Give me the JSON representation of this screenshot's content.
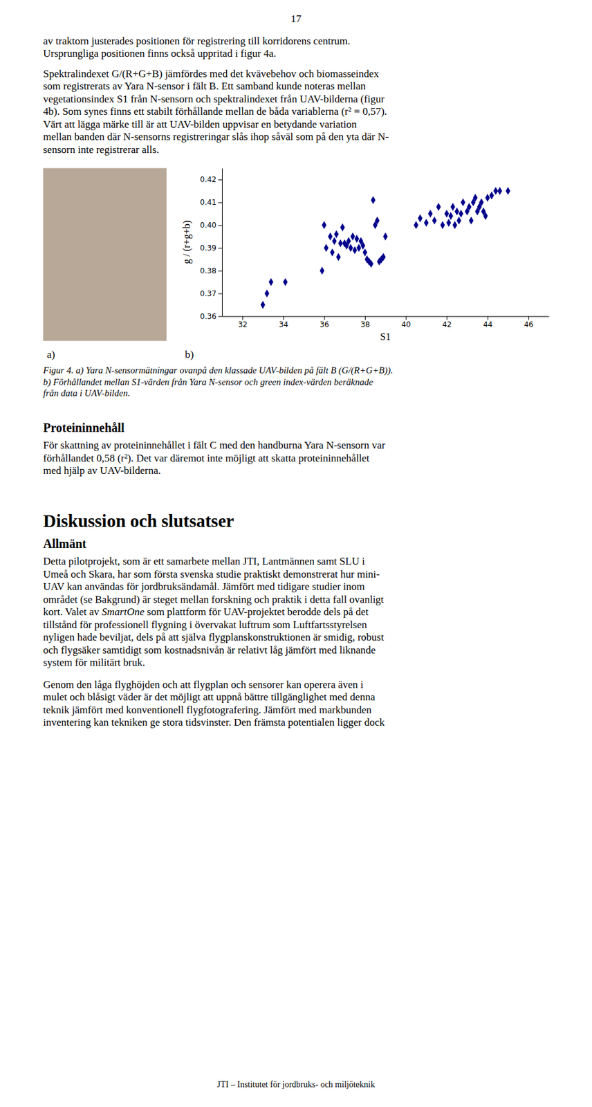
{
  "chart_data": {
    "type": "scatter",
    "xlabel": "S1",
    "ylabel": "g / (r+g+b)",
    "x": [
      33.0,
      33.2,
      33.4,
      34.1,
      35.9,
      36.0,
      36.1,
      36.3,
      36.4,
      36.5,
      36.6,
      36.7,
      36.8,
      36.9,
      37.0,
      37.1,
      37.2,
      37.3,
      37.4,
      37.5,
      37.6,
      37.7,
      37.8,
      37.9,
      38.0,
      38.1,
      38.2,
      38.3,
      38.4,
      38.5,
      38.6,
      38.7,
      38.8,
      38.9,
      39.0,
      40.5,
      40.7,
      41.0,
      41.2,
      41.4,
      41.6,
      41.8,
      42.0,
      42.1,
      42.2,
      42.3,
      42.4,
      42.5,
      42.6,
      42.7,
      42.8,
      43.0,
      43.1,
      43.2,
      43.3,
      43.4,
      43.5,
      43.6,
      43.7,
      43.8,
      43.9,
      44.0,
      44.2,
      44.4,
      44.6,
      45.0
    ],
    "values": [
      0.365,
      0.37,
      0.375,
      0.375,
      0.38,
      0.4,
      0.39,
      0.395,
      0.388,
      0.393,
      0.396,
      0.386,
      0.392,
      0.399,
      0.392,
      0.391,
      0.393,
      0.39,
      0.395,
      0.389,
      0.394,
      0.39,
      0.393,
      0.391,
      0.388,
      0.385,
      0.384,
      0.383,
      0.411,
      0.4,
      0.402,
      0.384,
      0.385,
      0.386,
      0.395,
      0.4,
      0.403,
      0.401,
      0.405,
      0.402,
      0.408,
      0.4,
      0.405,
      0.401,
      0.404,
      0.408,
      0.4,
      0.406,
      0.402,
      0.405,
      0.41,
      0.406,
      0.408,
      0.402,
      0.41,
      0.412,
      0.406,
      0.408,
      0.41,
      0.406,
      0.404,
      0.412,
      0.413,
      0.415,
      0.415,
      0.415
    ],
    "color": "#00008B",
    "marker": "diamond",
    "grid": false,
    "xlim": [
      31,
      47
    ],
    "ylim": [
      0.36,
      0.425
    ],
    "xticks": [
      32,
      34,
      36,
      38,
      40,
      42,
      44,
      46
    ],
    "yticks": [
      0.36,
      0.37,
      0.38,
      0.39,
      {
        "value": 0.4,
        "label": "0.40"
      },
      0.41,
      0.42
    ]
  },
  "page": {
    "page_number": "17",
    "paragraph1_lines": [
      "av traktorn justerades positionen för registrering till korridorens centrum.",
      "Ursprungliga positionen finns också uppritad i figur 4a."
    ],
    "paragraph2_lines": [
      "Spektralindexet G/(R+G+B) jämfördes med det kvävebehov och biomasseindex",
      "som registrerats av Yara N-sensor i fält B. Ett samband kunde noteras mellan",
      "vegetationsindex S1 från N-sensorn och spektralindexet från UAV-bilderna (figur",
      "4b). Som synes finns ett stabilt förhållande mellan de båda variablerna (r² = 0,57).",
      "Värt att lägga märke till är att UAV-bilden uppvisar en betydande variation",
      "mellan banden där N-sensorns registreringar slås ihop såväl som på den yta där N-",
      "sensorn inte registrerar alls."
    ],
    "panel_labels": [
      "a)",
      "b)"
    ],
    "figure_caption_lines": [
      "Figur 4. a) Yara N-sensormätningar ovanpå den klassade UAV-bilden på fält B (G/(R+G+B)).",
      "b) Förhållandet mellan S1-värden från Yara N-sensor och green index-värden beräknade",
      "från data i UAV-bilden."
    ],
    "section_proteininnehall": "Proteininnehåll",
    "paragraph_protein_lines": [
      "För skattning av proteininnehållet i fält C med den handburna Yara N-sensorn var",
      "förhållandet 0,58 (r²). Det var däremot inte möjligt att skatta proteininnehållet",
      "med hjälp av UAV-bilderna."
    ],
    "section_diskussion": "Diskussion och slutsatser",
    "section_allman": "Allmänt",
    "paragraph_diskussion_lines": [
      "Detta pilotprojekt, som är ett samarbete mellan JTI, Lantmännen samt SLU i",
      "Umeå och Skara, har som första svenska studie praktiskt demonstrerat hur mini-",
      "UAV kan användas för jordbruksändamål. Jämfört med tidigare studier inom",
      "området (se Bakgrund) är steget mellan forskning och praktik i detta fall ovanligt",
      [
        "kort. Valet av ",
        "SmartOne",
        " som plattform för UAV-projektet berodde dels på det"
      ],
      "tillstånd för professionell flygning i övervakat luftrum som Luftfartsstyrelsen",
      "nyligen hade beviljat, dels på att själva flygplanskonstruktionen är smidig, robust",
      "och flygsäker samtidigt som kostnadsnivån är relativt låg jämfört med liknande",
      "system för militärt bruk."
    ],
    "paragraph_diskussion2_lines": [
      "Genom den låga flyghöjden och att flygplan och sensorer kan operera även i",
      "mulet och blåsigt väder är det möjligt att uppnå bättre tillgänglighet med denna",
      "teknik jämfört med konventionell flygfotografering. Jämfört med markbunden",
      "inventering kan tekniken ge stora tidsvinster. Den främsta potentialen ligger dock"
    ],
    "footer": "JTI – Institutet för jordbruks- och miljöteknik"
  }
}
